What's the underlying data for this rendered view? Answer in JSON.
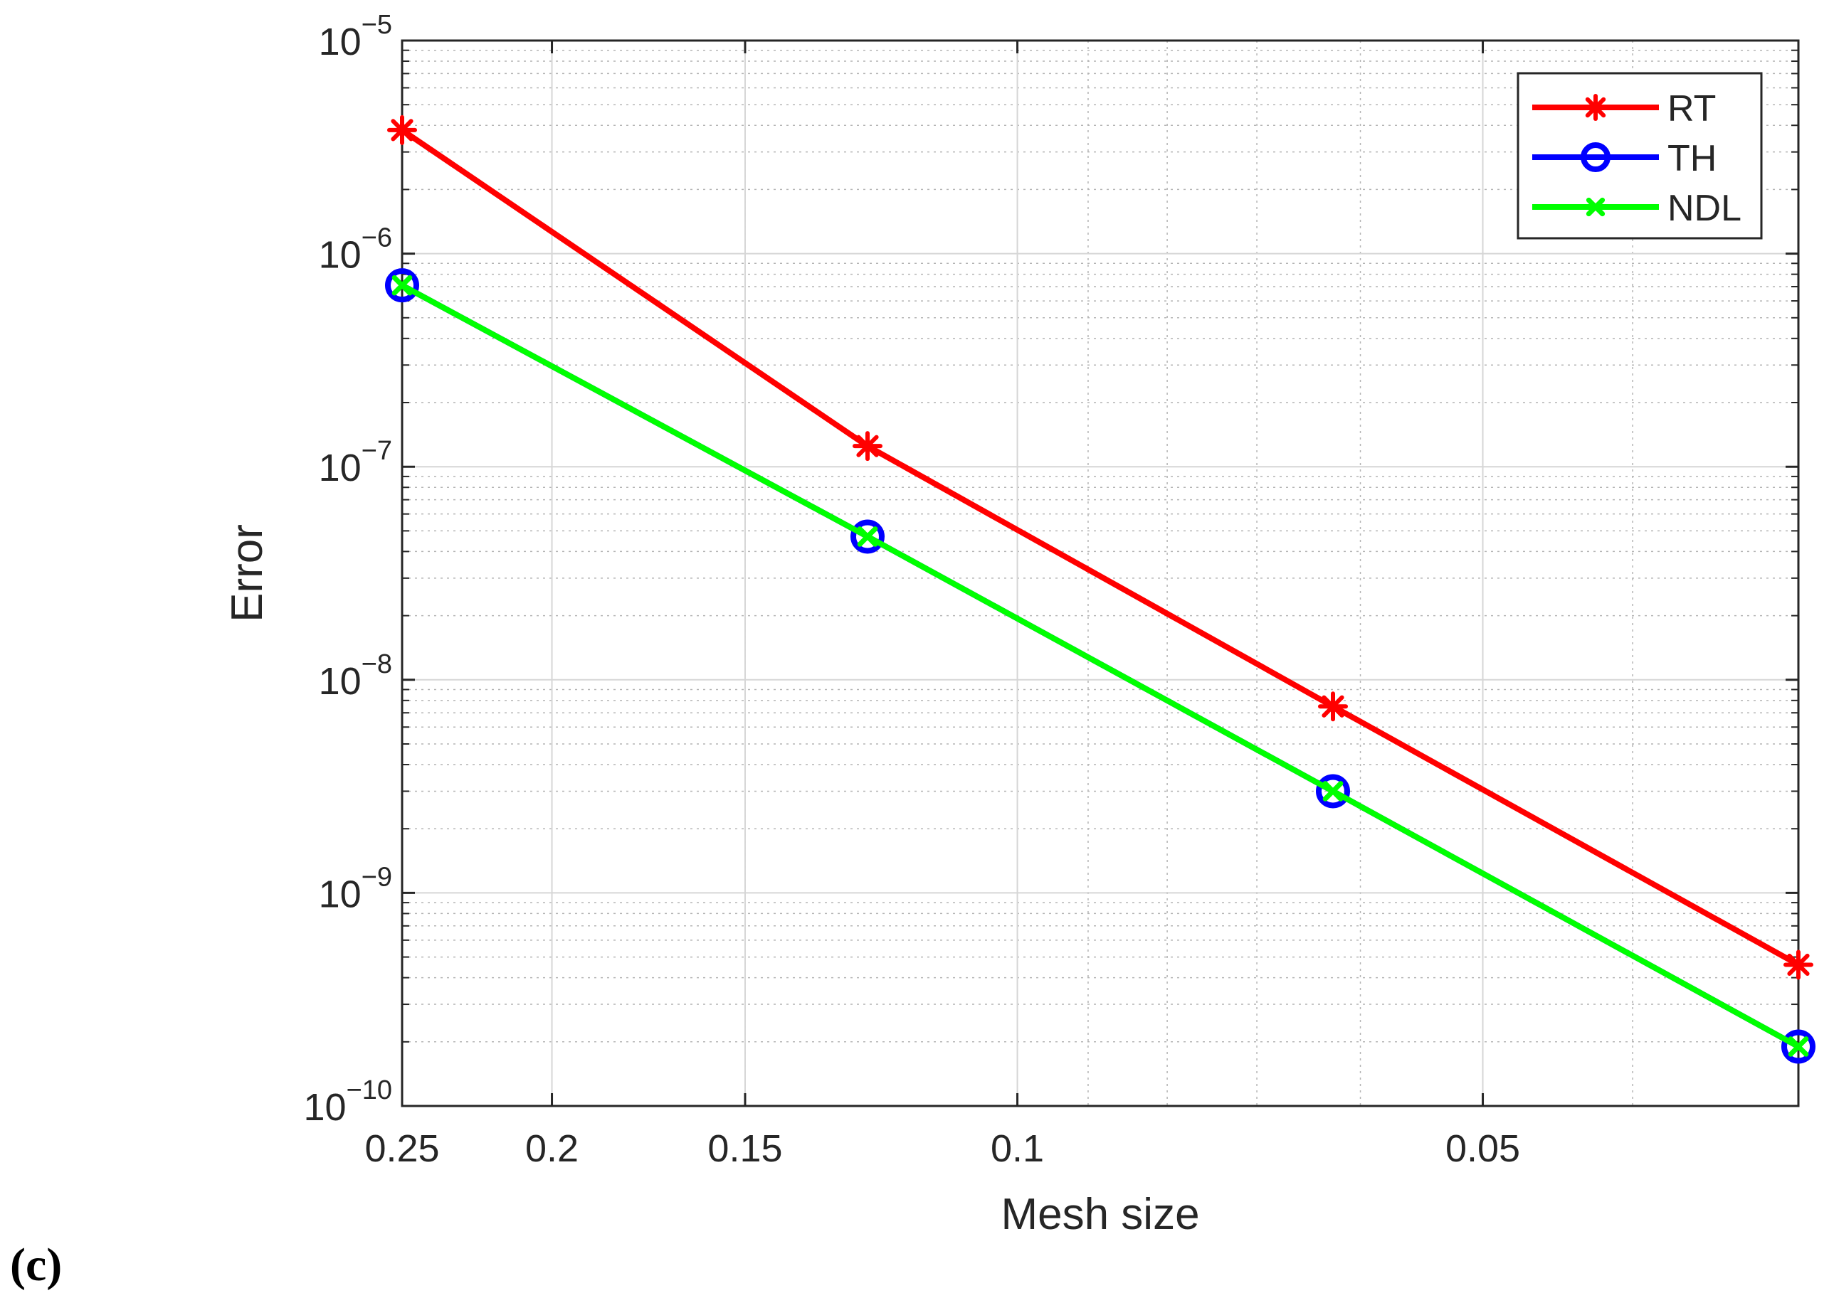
{
  "panel_label": "(c)",
  "chart_data": {
    "type": "line",
    "title": "",
    "xlabel": "Mesh size",
    "ylabel": "Error",
    "x_scale": "log",
    "x_reversed": true,
    "xlim": [
      0.25,
      0.03125
    ],
    "y_scale": "log",
    "ylim": [
      1e-10,
      1e-05
    ],
    "grid": true,
    "minor_grid": true,
    "legend_position": "top-right",
    "x_ticks": [
      {
        "value": 0.25,
        "label": "0.25"
      },
      {
        "value": 0.2,
        "label": "0.2"
      },
      {
        "value": 0.15,
        "label": "0.15"
      },
      {
        "value": 0.1,
        "label": "0.1"
      },
      {
        "value": 0.05,
        "label": "0.05"
      }
    ],
    "y_ticks": [
      {
        "value": 1e-10,
        "base": "10",
        "exp": "−10"
      },
      {
        "value": 1e-09,
        "base": "10",
        "exp": "−9"
      },
      {
        "value": 1e-08,
        "base": "10",
        "exp": "−8"
      },
      {
        "value": 1e-07,
        "base": "10",
        "exp": "−7"
      },
      {
        "value": 1e-06,
        "base": "10",
        "exp": "−6"
      },
      {
        "value": 1e-05,
        "base": "10",
        "exp": "−5"
      }
    ],
    "x": [
      0.25,
      0.125,
      0.0625,
      0.03125
    ],
    "series": [
      {
        "name": "RT",
        "color": "#ff0000",
        "marker": "star",
        "values": [
          3.8e-06,
          1.25e-07,
          7.5e-09,
          4.6e-10
        ]
      },
      {
        "name": "TH",
        "color": "#0000ff",
        "marker": "circle",
        "values": [
          7.1e-07,
          4.7e-08,
          3e-09,
          1.9e-10
        ]
      },
      {
        "name": "NDL",
        "color": "#00ff00",
        "marker": "cross",
        "values": [
          7.1e-07,
          4.7e-08,
          3e-09,
          1.9e-10
        ]
      }
    ]
  }
}
